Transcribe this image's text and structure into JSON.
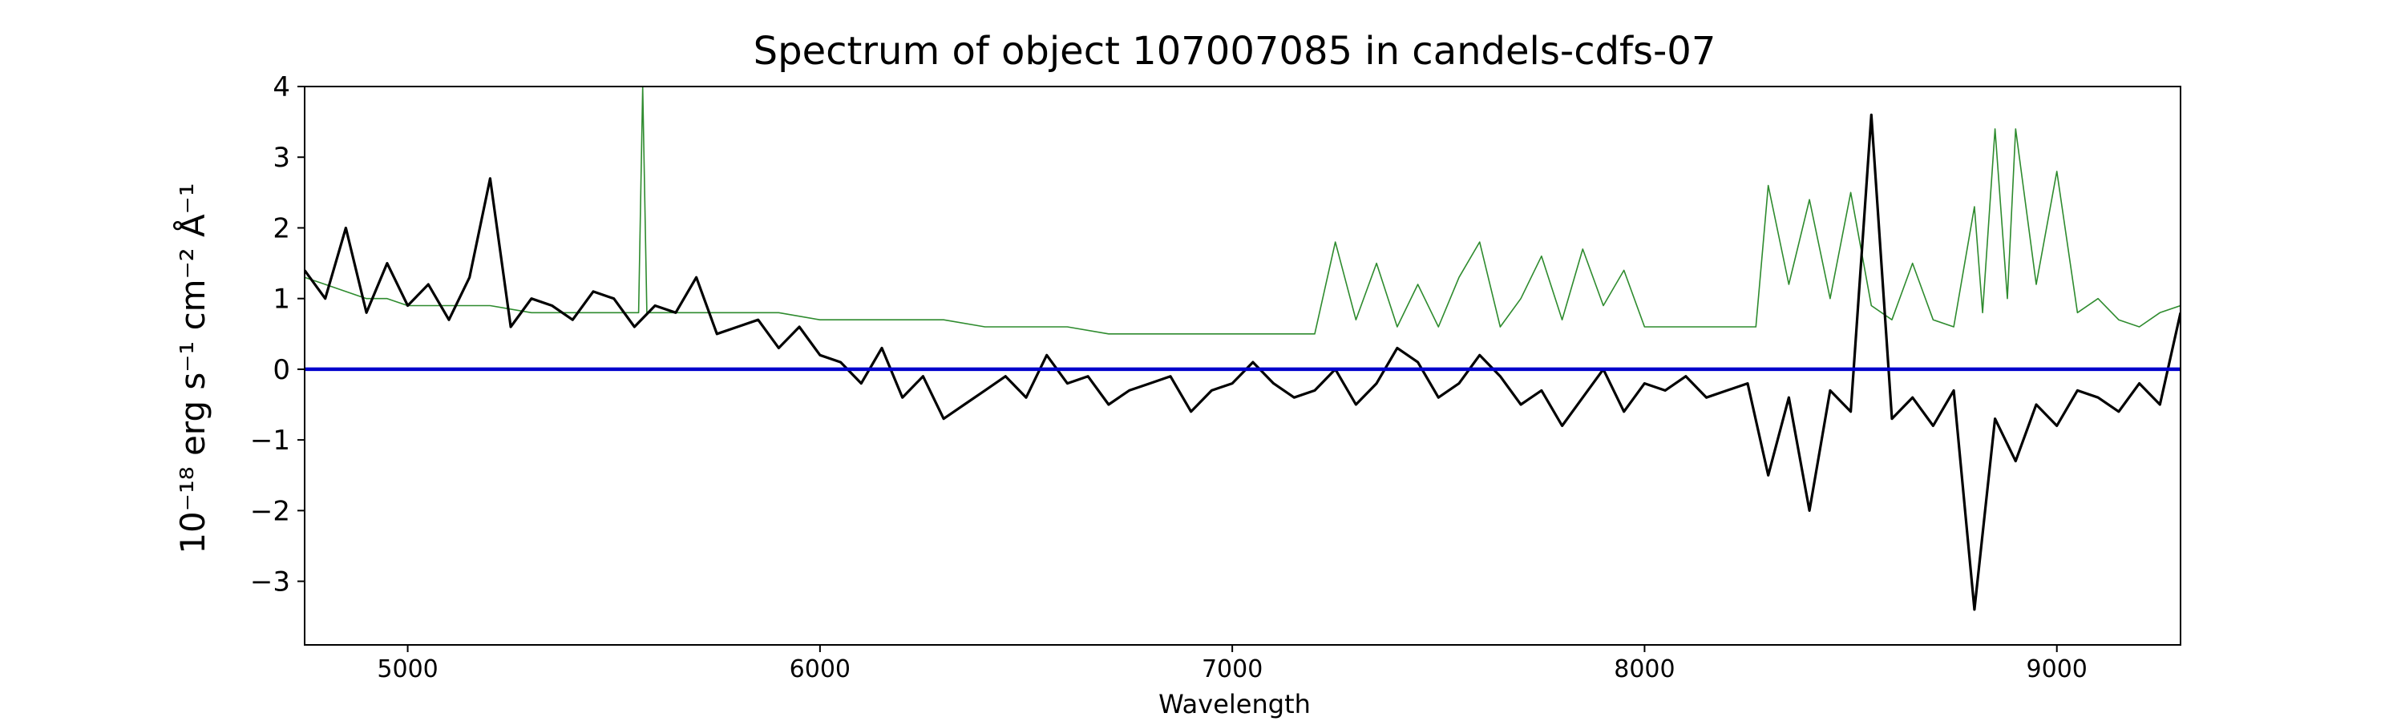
{
  "chart_data": {
    "type": "line",
    "title": "Spectrum of object 107007085 in candels-cdfs-07",
    "xlabel": "Wavelength",
    "ylabel": "10⁻¹⁸ erg s⁻¹ cm⁻² Å⁻¹",
    "xlim": [
      4750,
      9300
    ],
    "ylim": [
      -3.9,
      4.0
    ],
    "xticks": [
      5000,
      6000,
      7000,
      8000,
      9000
    ],
    "yticks": [
      -3,
      -2,
      -1,
      0,
      1,
      2,
      3,
      4
    ],
    "grid": false,
    "series": [
      {
        "color": "#000000",
        "x": [
          4750,
          4800,
          4850,
          4900,
          4950,
          5000,
          5050,
          5100,
          5150,
          5200,
          5250,
          5300,
          5350,
          5400,
          5450,
          5500,
          5550,
          5600,
          5650,
          5700,
          5750,
          5800,
          5850,
          5900,
          5950,
          6000,
          6050,
          6100,
          6150,
          6200,
          6250,
          6300,
          6350,
          6400,
          6450,
          6500,
          6550,
          6600,
          6650,
          6700,
          6750,
          6800,
          6850,
          6900,
          6950,
          7000,
          7050,
          7100,
          7150,
          7200,
          7250,
          7300,
          7350,
          7400,
          7450,
          7500,
          7550,
          7600,
          7650,
          7700,
          7750,
          7800,
          7850,
          7900,
          7950,
          8000,
          8050,
          8100,
          8150,
          8200,
          8250,
          8300,
          8350,
          8400,
          8450,
          8500,
          8550,
          8600,
          8650,
          8700,
          8750,
          8800,
          8850,
          8900,
          8950,
          9000,
          9050,
          9100,
          9150,
          9200,
          9250,
          9300
        ],
        "y": [
          1.4,
          1.0,
          2.0,
          0.8,
          1.5,
          0.9,
          1.2,
          0.7,
          1.3,
          2.7,
          0.6,
          1.0,
          0.9,
          0.7,
          1.1,
          1.0,
          0.6,
          0.9,
          0.8,
          1.3,
          0.5,
          0.6,
          0.7,
          0.3,
          0.6,
          0.2,
          0.1,
          -0.2,
          0.3,
          -0.4,
          -0.1,
          -0.7,
          -0.5,
          -0.3,
          -0.1,
          -0.4,
          0.2,
          -0.2,
          -0.1,
          -0.5,
          -0.3,
          -0.2,
          -0.1,
          -0.6,
          -0.3,
          -0.2,
          0.1,
          -0.2,
          -0.4,
          -0.3,
          0.0,
          -0.5,
          -0.2,
          0.3,
          0.1,
          -0.4,
          -0.2,
          0.2,
          -0.1,
          -0.5,
          -0.3,
          -0.8,
          -0.4,
          0.0,
          -0.6,
          -0.2,
          -0.3,
          -0.1,
          -0.4,
          -0.3,
          -0.2,
          -1.5,
          -0.4,
          -2.0,
          -0.3,
          -0.6,
          3.6,
          -0.7,
          -0.4,
          -0.8,
          -0.3,
          -3.4,
          -0.7,
          -1.3,
          -0.5,
          -0.8,
          -0.3,
          -0.4,
          -0.6,
          -0.2,
          -0.5,
          0.8
        ]
      },
      {
        "color": "#2e8b2e",
        "x": [
          4750,
          4800,
          4850,
          4900,
          4950,
          5000,
          5100,
          5200,
          5300,
          5400,
          5500,
          5560,
          5570,
          5580,
          5600,
          5700,
          5800,
          5900,
          6000,
          6100,
          6200,
          6300,
          6400,
          6500,
          6600,
          6700,
          6800,
          6900,
          7000,
          7100,
          7200,
          7250,
          7300,
          7350,
          7400,
          7450,
          7500,
          7550,
          7600,
          7650,
          7700,
          7750,
          7800,
          7850,
          7900,
          7950,
          8000,
          8100,
          8200,
          8270,
          8300,
          8350,
          8400,
          8450,
          8500,
          8550,
          8600,
          8650,
          8700,
          8750,
          8800,
          8820,
          8850,
          8880,
          8900,
          8950,
          9000,
          9050,
          9100,
          9150,
          9200,
          9250,
          9300
        ],
        "y": [
          1.3,
          1.2,
          1.1,
          1.0,
          1.0,
          0.9,
          0.9,
          0.9,
          0.8,
          0.8,
          0.8,
          0.8,
          4.0,
          0.8,
          0.8,
          0.8,
          0.8,
          0.8,
          0.7,
          0.7,
          0.7,
          0.7,
          0.6,
          0.6,
          0.6,
          0.5,
          0.5,
          0.5,
          0.5,
          0.5,
          0.5,
          1.8,
          0.7,
          1.5,
          0.6,
          1.2,
          0.6,
          1.3,
          1.8,
          0.6,
          1.0,
          1.6,
          0.7,
          1.7,
          0.9,
          1.4,
          0.6,
          0.6,
          0.6,
          0.6,
          2.6,
          1.2,
          2.4,
          1.0,
          2.5,
          0.9,
          0.7,
          1.5,
          0.7,
          0.6,
          2.3,
          0.8,
          3.4,
          1.0,
          3.4,
          1.2,
          2.8,
          0.8,
          1.0,
          0.7,
          0.6,
          0.8,
          0.9
        ]
      },
      {
        "color": "#0000cc",
        "x": [
          4750,
          9300
        ],
        "y": [
          0.0,
          0.0
        ]
      }
    ]
  }
}
